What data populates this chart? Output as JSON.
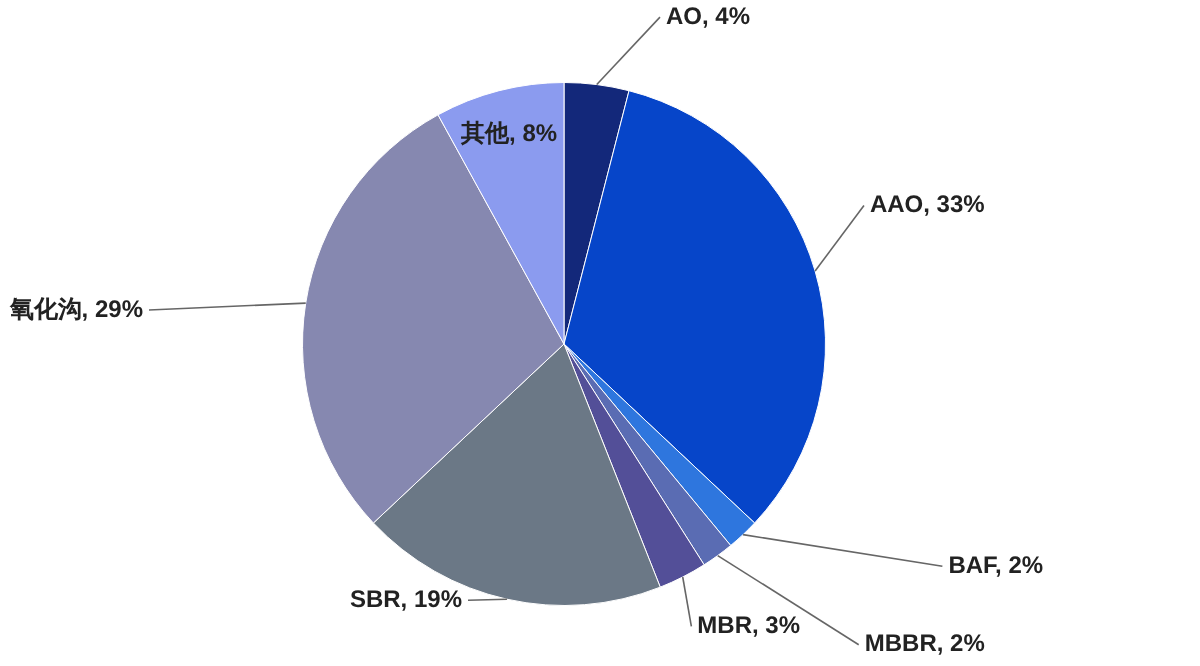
{
  "chart_data": {
    "type": "pie",
    "categories": [
      "AO",
      "AAO",
      "BAF",
      "MBBR",
      "MBR",
      "SBR",
      "氧化沟",
      "其他"
    ],
    "values": [
      4,
      33,
      2,
      2,
      3,
      19,
      29,
      8
    ],
    "value_labels": [
      "4%",
      "33%",
      "2%",
      "2%",
      "3%",
      "19%",
      "29%",
      "8%"
    ],
    "colors": [
      "#13287a",
      "#0645c9",
      "#2e76de",
      "#5a6cb3",
      "#534f98",
      "#6b7886",
      "#8688b0",
      "#8b9bef"
    ],
    "legend": false
  }
}
